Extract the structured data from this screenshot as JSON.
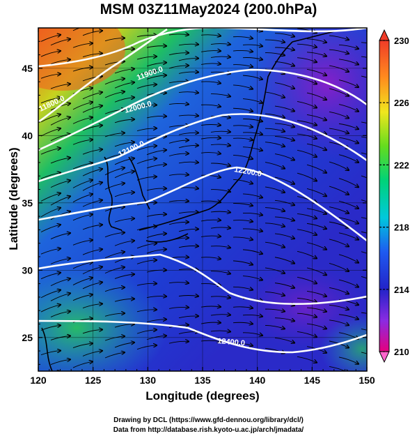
{
  "title": "MSM 03Z11May2024 (200.0hPa)",
  "xlabel": "Longitude (degrees)",
  "ylabel": "Latitude  (degrees)",
  "credit_line1": "Drawing by DCL (https://www.gfd-dennou.org/library/dcl/)",
  "credit_line2": "Data from http://database.rish.kyoto-u.ac.jp/arch/jmadata/",
  "map": {
    "lon_range": [
      120,
      150
    ],
    "lat_range": [
      22.5,
      48
    ],
    "x_ticks": [
      120,
      125,
      130,
      135,
      140,
      145,
      150
    ],
    "x_tick_labels": [
      "120",
      "125",
      "130",
      "135",
      "140",
      "145",
      "150"
    ],
    "y_ticks": [
      25,
      30,
      35,
      40,
      45
    ],
    "y_tick_labels": [
      "25",
      "30",
      "35",
      "40",
      "45"
    ],
    "shading_variable_range": [
      210,
      230
    ],
    "colorbar_ticks": [
      210,
      214,
      218,
      222,
      226,
      230
    ],
    "colorbar_labels": [
      "210",
      "214",
      "218",
      "222",
      "226",
      "230"
    ],
    "colorbar_colors": [
      "#e6007e",
      "#8a2be2",
      "#2323c8",
      "#1e5af0",
      "#00c8dc",
      "#00d278",
      "#64dc1e",
      "#f0e61e",
      "#ff8c1e",
      "#f03c28"
    ],
    "contour_labels": [
      "11900.0",
      "12000.0",
      "12100.0",
      "12200.0",
      "12400.0",
      "11800.0"
    ],
    "contour_color": "#ffffff",
    "vectors": "wind streamlines (arrows)"
  }
}
